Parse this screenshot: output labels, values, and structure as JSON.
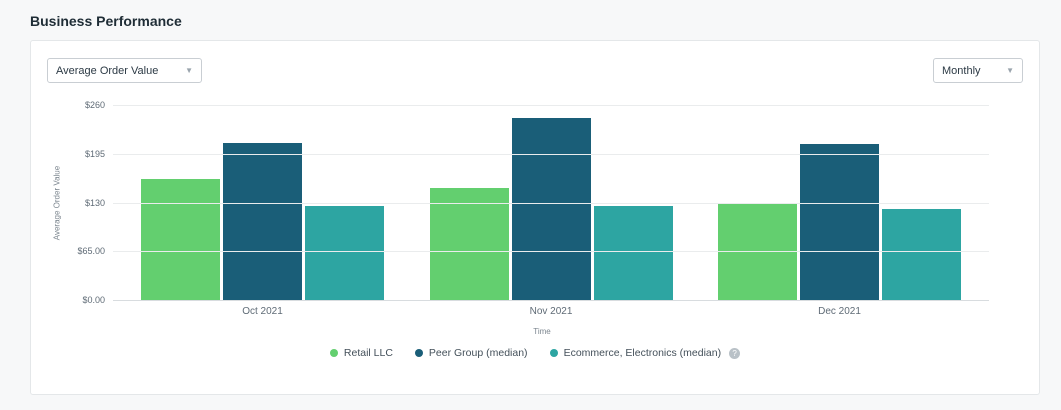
{
  "page": {
    "title": "Business Performance"
  },
  "controls": {
    "metric_dropdown": {
      "value": "Average Order Value"
    },
    "period_dropdown": {
      "value": "Monthly"
    }
  },
  "chart_data": {
    "type": "bar",
    "categories": [
      "Oct 2021",
      "Nov 2021",
      "Dec 2021"
    ],
    "series": [
      {
        "name": "Retail LLC",
        "color": "#63cf6f",
        "values": [
          161,
          149,
          128
        ]
      },
      {
        "name": "Peer Group (median)",
        "color": "#1a5e78",
        "values": [
          210,
          243,
          208
        ]
      },
      {
        "name": "Ecommerce, Electronics (median)",
        "color": "#2da5a2",
        "values": [
          126,
          125,
          121
        ]
      }
    ],
    "title": "",
    "xlabel": "Time",
    "ylabel": "Average Order Value",
    "ylim": [
      0,
      260
    ],
    "yticks": [
      "$260",
      "$195",
      "$130",
      "$65.00",
      "$0.00"
    ],
    "grid": true,
    "legend_position": "bottom",
    "legend_info_icon_on_last": "?"
  }
}
